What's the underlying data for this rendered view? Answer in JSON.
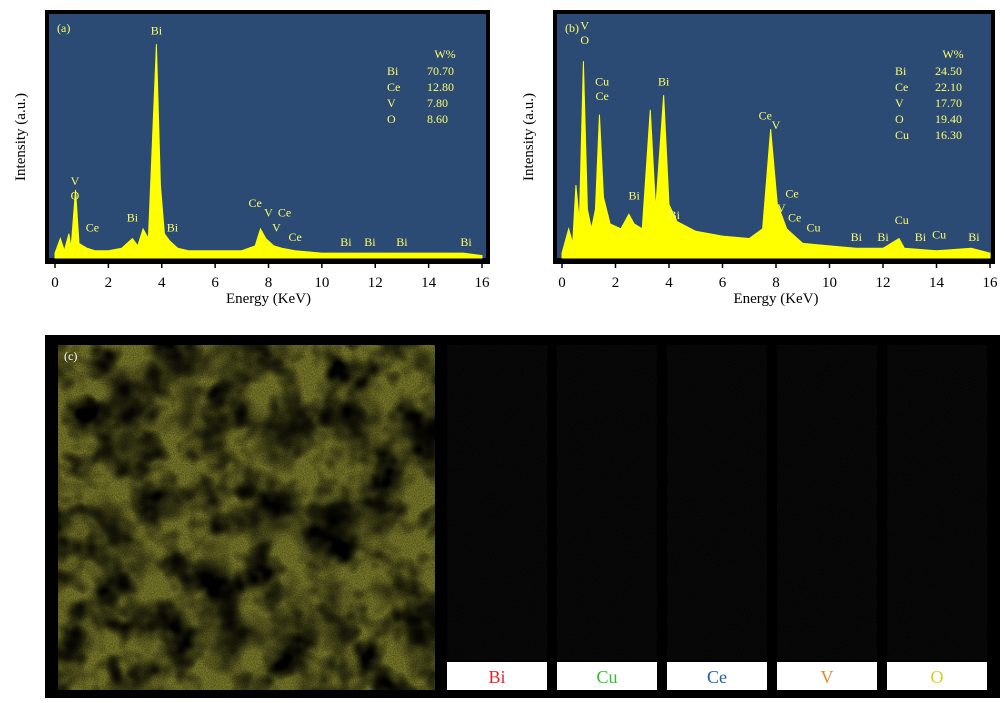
{
  "chart_data": [
    {
      "type": "area",
      "panel": "(a)",
      "x_label": "Energy (KeV)",
      "y_label": "Intensity (a.u.)",
      "background": "#2b4a74",
      "color": "#ffff00",
      "xlim": [
        0,
        16
      ],
      "xticks": [
        0,
        2,
        4,
        6,
        8,
        10,
        12,
        14,
        16
      ],
      "ylim": [
        0,
        100
      ],
      "x": [
        0,
        0.2,
        0.35,
        0.52,
        0.6,
        0.77,
        0.9,
        1.2,
        1.5,
        2,
        2.5,
        2.9,
        3.1,
        3.3,
        3.5,
        3.8,
        3.95,
        4.1,
        4.3,
        4.6,
        5,
        6,
        7,
        7.5,
        7.7,
        7.9,
        8.2,
        8.5,
        9,
        10,
        11,
        12,
        13,
        14,
        15.3,
        16
      ],
      "values": [
        2,
        8,
        3,
        10,
        4,
        28,
        6,
        4,
        3,
        3,
        4,
        8,
        5,
        12,
        8,
        88,
        30,
        10,
        7,
        4,
        3,
        3,
        3,
        5,
        12,
        8,
        5,
        4,
        3,
        2,
        2,
        2,
        2,
        2,
        2,
        1
      ],
      "annotations": [
        {
          "text": "Bi",
          "x": 3.8,
          "y": 92
        },
        {
          "text": "V",
          "x": 0.75,
          "y": 30
        },
        {
          "text": "O",
          "x": 0.75,
          "y": 24
        },
        {
          "text": "Ce",
          "x": 1.4,
          "y": 11
        },
        {
          "text": "Bi",
          "x": 2.9,
          "y": 15
        },
        {
          "text": "Bi",
          "x": 4.4,
          "y": 11
        },
        {
          "text": "Ce",
          "x": 7.5,
          "y": 21
        },
        {
          "text": "V",
          "x": 8.0,
          "y": 17
        },
        {
          "text": "Ce",
          "x": 8.6,
          "y": 17
        },
        {
          "text": "V",
          "x": 8.3,
          "y": 11
        },
        {
          "text": "Ce",
          "x": 9.0,
          "y": 7
        },
        {
          "text": "Bi",
          "x": 10.9,
          "y": 5
        },
        {
          "text": "Bi",
          "x": 11.8,
          "y": 5
        },
        {
          "text": "Bi",
          "x": 13.0,
          "y": 5
        },
        {
          "text": "Bi",
          "x": 15.4,
          "y": 5
        }
      ],
      "composition": {
        "header": "W%",
        "rows": [
          [
            "Bi",
            "70.70"
          ],
          [
            "Ce",
            "12.80"
          ],
          [
            "V",
            "7.80"
          ],
          [
            "O",
            "8.60"
          ]
        ]
      }
    },
    {
      "type": "area",
      "panel": "(b)",
      "x_label": "Energy (KeV)",
      "y_label": "Intensity (a.u.)",
      "background": "#2b4a74",
      "color": "#ffff00",
      "xlim": [
        0,
        16
      ],
      "xticks": [
        0,
        2,
        4,
        6,
        8,
        10,
        12,
        14,
        16
      ],
      "ylim": [
        0,
        100
      ],
      "x": [
        0,
        0.25,
        0.4,
        0.52,
        0.65,
        0.8,
        0.95,
        1.1,
        1.25,
        1.4,
        1.55,
        1.8,
        2.2,
        2.5,
        2.7,
        3,
        3.3,
        3.5,
        3.8,
        4,
        4.3,
        5,
        6,
        7,
        7.5,
        7.8,
        8.05,
        8.2,
        8.4,
        8.8,
        9,
        10,
        11,
        12,
        12.6,
        12.8,
        14,
        15.3,
        16
      ],
      "values": [
        2,
        12,
        6,
        30,
        15,
        81,
        20,
        12,
        20,
        59,
        25,
        14,
        12,
        18,
        14,
        12,
        61,
        20,
        67,
        22,
        15,
        11,
        9,
        8,
        12,
        53,
        22,
        18,
        12,
        8,
        6,
        5,
        4,
        4,
        8,
        4,
        3,
        4,
        2
      ],
      "annotations": [
        {
          "text": "V",
          "x": 0.85,
          "y": 94
        },
        {
          "text": "O",
          "x": 0.85,
          "y": 88
        },
        {
          "text": "Cu",
          "x": 1.5,
          "y": 71
        },
        {
          "text": "Ce",
          "x": 1.5,
          "y": 65
        },
        {
          "text": "Bi",
          "x": 3.8,
          "y": 71
        },
        {
          "text": "Bi",
          "x": 2.7,
          "y": 24
        },
        {
          "text": "Bi",
          "x": 4.2,
          "y": 16
        },
        {
          "text": "Ce",
          "x": 7.6,
          "y": 57
        },
        {
          "text": "V",
          "x": 8.0,
          "y": 53
        },
        {
          "text": "Ce",
          "x": 8.6,
          "y": 25
        },
        {
          "text": "V",
          "x": 8.2,
          "y": 19
        },
        {
          "text": "Ce",
          "x": 8.7,
          "y": 15
        },
        {
          "text": "Cu",
          "x": 9.4,
          "y": 11
        },
        {
          "text": "Bi",
          "x": 11,
          "y": 7
        },
        {
          "text": "Bi",
          "x": 12,
          "y": 7
        },
        {
          "text": "Cu",
          "x": 12.7,
          "y": 14
        },
        {
          "text": "Bi",
          "x": 13.4,
          "y": 7
        },
        {
          "text": "Cu",
          "x": 14.1,
          "y": 8
        },
        {
          "text": "Bi",
          "x": 15.4,
          "y": 7
        }
      ],
      "composition": {
        "header": "W%",
        "rows": [
          [
            "Bi",
            "24.50"
          ],
          [
            "Ce",
            "22.10"
          ],
          [
            "V",
            "17.70"
          ],
          [
            "O",
            "19.40"
          ],
          [
            "Cu",
            "16.30"
          ]
        ]
      }
    }
  ],
  "maps": {
    "panel": "(c)",
    "elements": [
      {
        "label": "Bi",
        "color": "#e8202a"
      },
      {
        "label": "Cu",
        "color": "#2ec02e"
      },
      {
        "label": "Ce",
        "color": "#1f5fa8"
      },
      {
        "label": "V",
        "color": "#e08a2a"
      },
      {
        "label": "O",
        "color": "#d8d020"
      }
    ]
  }
}
